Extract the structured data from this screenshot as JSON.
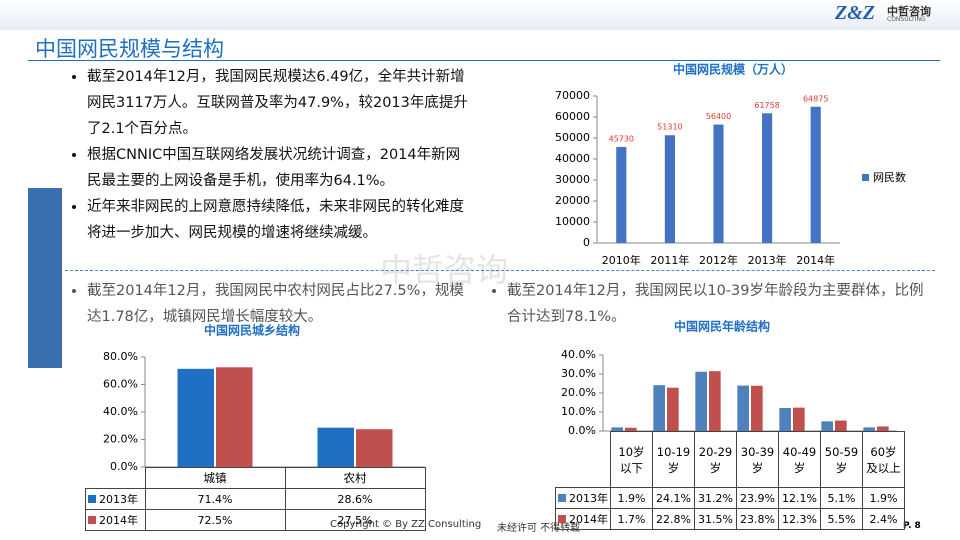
{
  "header": {
    "logo": "Z&Z",
    "logo_cn": "中哲咨询",
    "logo_en": "CONSULTING",
    "title": "中国网民规模与结构"
  },
  "bullets_top": [
    "截至2014年12月，我国网民规模达6.49亿，全年共计新增网民3117万人。互联网普及率为47.9%，较2013年底提升了2.1个百分点。",
    "根据CNNIC中国互联网络发展状况统计调查，2014年新网民最主要的上网设备是手机，使用率为64.1%。",
    "近年来非网民的上网意愿持续降低，未来非网民的转化难度将进一步加大、网民规模的增速将继续减缓。"
  ],
  "bullet_left": "截至2014年12月，我国网民中农村网民占比27.5%，规模达1.78亿，城镇网民增长幅度较大。",
  "bullet_right": "截至2014年12月，我国网民以10-39岁年龄段为主要群体，比例合计达到78.1%。",
  "watermark": "中哲咨询",
  "footer": {
    "copyright": "Copyright © By  ZZ Consulting",
    "note": "未经许可 不得转载",
    "page": "P. 8"
  },
  "chart_data": [
    {
      "type": "bar",
      "title": "中国网民规模（万人）",
      "categories": [
        "2010年",
        "2011年",
        "2012年",
        "2013年",
        "2014年"
      ],
      "series": [
        {
          "name": "网民数",
          "color": "#4472c4",
          "values": [
            45730,
            51310,
            56400,
            61758,
            64875
          ]
        }
      ],
      "value_label_color": "#e03c31",
      "ylim": [
        0,
        70000
      ],
      "yticks": [
        0,
        10000,
        20000,
        30000,
        40000,
        50000,
        60000,
        70000
      ],
      "legend": "right"
    },
    {
      "type": "bar",
      "title": "中国网民城乡结构",
      "categories": [
        "城镇",
        "农村"
      ],
      "series": [
        {
          "name": "2013年",
          "color": "#1f6fc5",
          "values": [
            71.4,
            28.6
          ],
          "value_labels": [
            "71.4%",
            "28.6%"
          ]
        },
        {
          "name": "2014年",
          "color": "#c0504d",
          "values": [
            72.5,
            27.5
          ],
          "value_labels": [
            "72.5%",
            "27.5%"
          ]
        }
      ],
      "ylim": [
        0,
        80
      ],
      "yticks": [
        {
          "value": 0,
          "label": "0.0%"
        },
        {
          "value": 20,
          "label": "20.0%"
        },
        {
          "value": 40,
          "label": "40.0%"
        },
        {
          "value": 60,
          "label": "60.0%"
        },
        {
          "value": 80,
          "label": "80.0%"
        }
      ],
      "legend": "table"
    },
    {
      "type": "bar",
      "title": "中国网民年龄结构",
      "categories": [
        "10岁以下",
        "10-19岁",
        "20-29岁",
        "30-39岁",
        "40-49岁",
        "50-59岁",
        "60岁及以上"
      ],
      "series": [
        {
          "name": "2013年",
          "color": "#4f81bd",
          "values": [
            1.9,
            24.1,
            31.2,
            23.9,
            12.1,
            5.1,
            1.9
          ],
          "value_labels": [
            "1.9%",
            "24.1%",
            "31.2%",
            "23.9%",
            "12.1%",
            "5.1%",
            "1.9%"
          ]
        },
        {
          "name": "2014年",
          "color": "#c0504d",
          "values": [
            1.7,
            22.8,
            31.5,
            23.8,
            12.3,
            5.5,
            2.4
          ],
          "value_labels": [
            "1.7%",
            "22.8%",
            "31.5%",
            "23.8%",
            "12.3%",
            "5.5%",
            "2.4%"
          ]
        }
      ],
      "ylim": [
        0,
        40
      ],
      "yticks": [
        {
          "value": 0,
          "label": "0.0%"
        },
        {
          "value": 10,
          "label": "10.0%"
        },
        {
          "value": 20,
          "label": "20.0%"
        },
        {
          "value": 30,
          "label": "30.0%"
        },
        {
          "value": 40,
          "label": "40.0%"
        }
      ],
      "legend": "table"
    }
  ]
}
